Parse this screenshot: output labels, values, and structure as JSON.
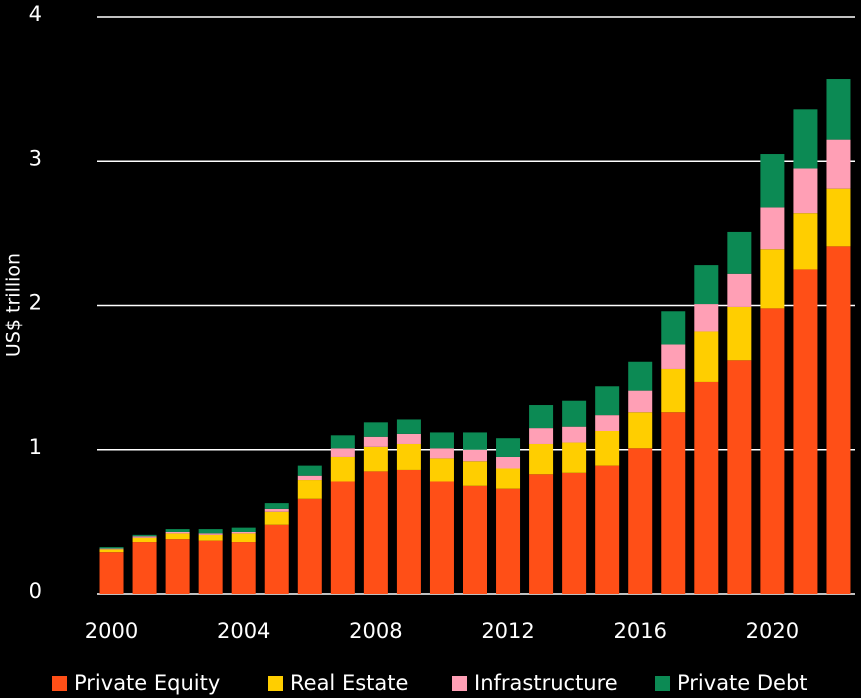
{
  "chart_data": {
    "type": "stacked_bar",
    "y_label": "US$ trillion",
    "categories": [
      "2000",
      null,
      null,
      null,
      "2004",
      null,
      null,
      null,
      "2008",
      null,
      null,
      null,
      "2012",
      null,
      null,
      null,
      "2016",
      null,
      null,
      null,
      "2020",
      null,
      null
    ],
    "series": [
      {
        "name": "Private Equity",
        "color": "#ff4f17",
        "values": [
          0.29,
          0.36,
          0.38,
          0.37,
          0.36,
          0.48,
          0.66,
          0.78,
          0.85,
          0.86,
          0.78,
          0.75,
          0.73,
          0.83,
          0.84,
          0.89,
          1.01,
          1.26,
          1.47,
          1.62,
          1.98,
          2.25,
          2.41
        ]
      },
      {
        "name": "Real Estate",
        "color": "#ffce00",
        "values": [
          0.02,
          0.03,
          0.04,
          0.04,
          0.06,
          0.09,
          0.13,
          0.17,
          0.17,
          0.18,
          0.16,
          0.17,
          0.14,
          0.21,
          0.21,
          0.24,
          0.25,
          0.3,
          0.35,
          0.37,
          0.41,
          0.39,
          0.4
        ]
      },
      {
        "name": "Infrastructure",
        "color": "#ff9fb5",
        "values": [
          0.005,
          0.01,
          0.01,
          0.01,
          0.01,
          0.02,
          0.03,
          0.06,
          0.07,
          0.07,
          0.07,
          0.08,
          0.08,
          0.11,
          0.11,
          0.11,
          0.15,
          0.17,
          0.19,
          0.23,
          0.29,
          0.31,
          0.34
        ]
      },
      {
        "name": "Private Debt",
        "color": "#0c8a54",
        "values": [
          0.01,
          0.01,
          0.02,
          0.03,
          0.03,
          0.04,
          0.07,
          0.09,
          0.1,
          0.1,
          0.11,
          0.12,
          0.13,
          0.16,
          0.18,
          0.2,
          0.2,
          0.23,
          0.27,
          0.29,
          0.37,
          0.41,
          0.42
        ]
      }
    ],
    "ylim": [
      0,
      4
    ],
    "yticks": [
      0,
      1,
      2,
      3,
      4
    ],
    "grid": true,
    "legend": "bottom"
  }
}
